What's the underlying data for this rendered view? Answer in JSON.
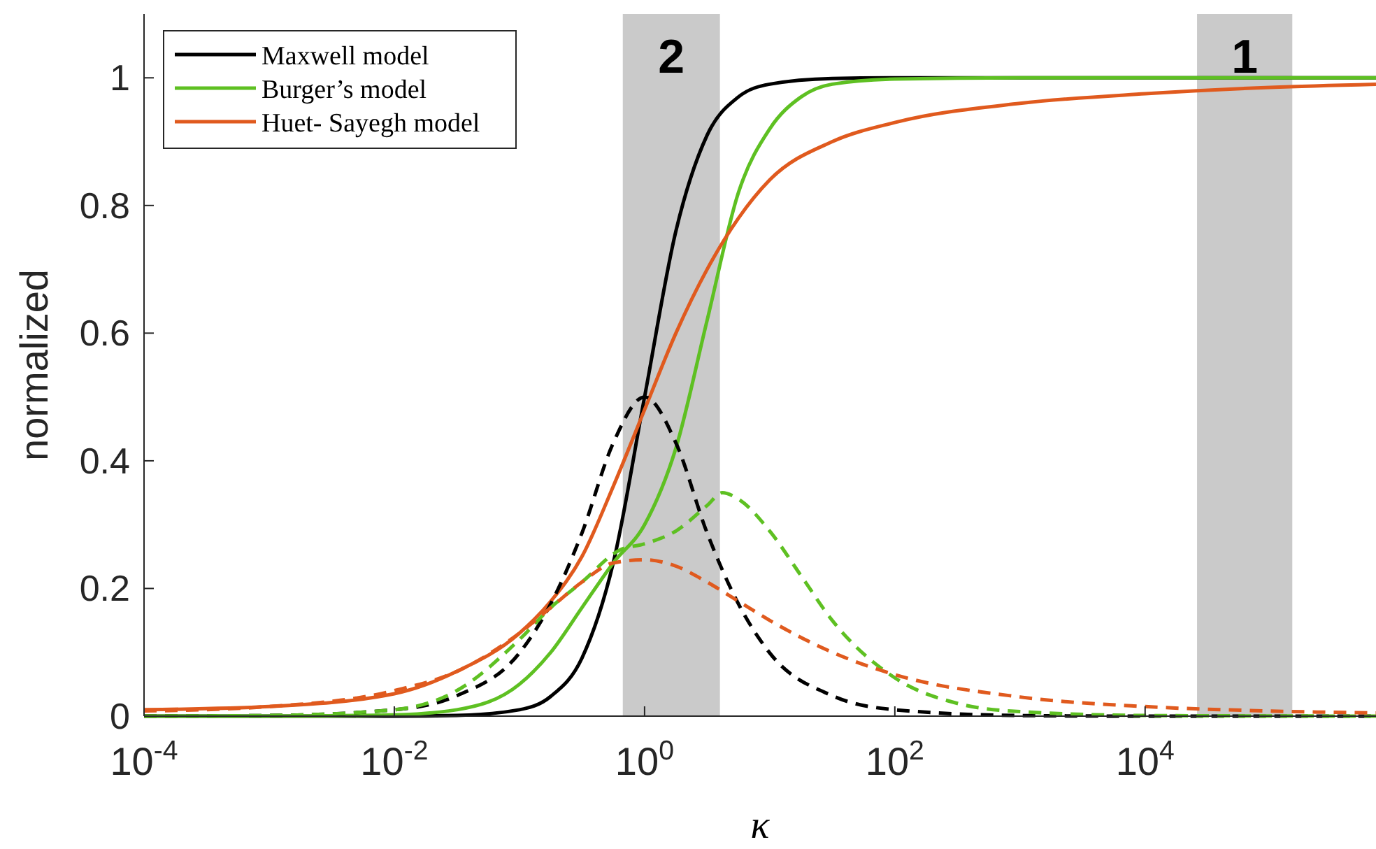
{
  "chart_data": {
    "type": "line",
    "xlabel": "κ",
    "ylabel": "normalized",
    "log": "x",
    "xlim": [
      0.0001,
      700000
    ],
    "ylim": [
      0,
      1.1
    ],
    "xticks": [
      {
        "value": 0.0001,
        "label": "10$^{-4}$"
      },
      {
        "value": 0.01,
        "label": "10$^{-2}$"
      },
      {
        "value": 1,
        "label": "10$^{0}$"
      },
      {
        "value": 100,
        "label": "10$^{2}$"
      },
      {
        "value": 10000,
        "label": "10$^{4}$"
      }
    ],
    "yticks": [
      0,
      0.2,
      0.4,
      0.6,
      0.8,
      1
    ],
    "grid": false,
    "legend": "top left",
    "series": [
      {
        "name": "Maxwell model",
        "color": "#000000",
        "line_style": "solid",
        "x": [
          0.0001,
          0.001,
          0.01,
          0.0316,
          0.1,
          0.178,
          0.316,
          0.562,
          1,
          1.78,
          3.16,
          5.62,
          10,
          31.6,
          100,
          1000,
          10000,
          100000,
          700000
        ],
        "values": [
          0,
          0,
          0,
          0.001,
          0.01,
          0.031,
          0.091,
          0.24,
          0.5,
          0.76,
          0.91,
          0.97,
          0.99,
          0.999,
          1,
          1,
          1,
          1,
          1
        ]
      },
      {
        "name": "Burger’s model",
        "color": "#5ec022",
        "line_style": "solid",
        "x": [
          0.0001,
          0.001,
          0.01,
          0.0316,
          0.1,
          0.178,
          0.316,
          0.562,
          1,
          1.78,
          3.16,
          5.62,
          10,
          17.8,
          31.6,
          100,
          1000,
          10000,
          100000,
          700000
        ],
        "values": [
          0,
          0,
          0.002,
          0.01,
          0.05,
          0.1,
          0.17,
          0.24,
          0.3,
          0.42,
          0.62,
          0.82,
          0.92,
          0.97,
          0.99,
          0.998,
          1,
          1,
          1,
          1
        ]
      },
      {
        "name": "Huet- Sayegh model",
        "color": "#e05a1e",
        "line_style": "solid",
        "x": [
          0.0001,
          0.001,
          0.01,
          0.0316,
          0.1,
          0.178,
          0.316,
          0.562,
          1,
          1.78,
          3.16,
          5.62,
          10,
          31.6,
          100,
          1000,
          10000,
          100000,
          700000
        ],
        "values": [
          0.01,
          0.015,
          0.035,
          0.07,
          0.13,
          0.18,
          0.25,
          0.36,
          0.48,
          0.6,
          0.7,
          0.78,
          0.84,
          0.9,
          0.93,
          0.96,
          0.975,
          0.985,
          0.99
        ]
      },
      {
        "color": "#000000",
        "line_style": "dashed",
        "x": [
          0.0001,
          0.001,
          0.01,
          0.0316,
          0.1,
          0.178,
          0.316,
          0.562,
          1,
          1.78,
          3.16,
          5.62,
          10,
          31.6,
          100,
          1000,
          10000,
          100000,
          700000
        ],
        "values": [
          0,
          0.001,
          0.01,
          0.032,
          0.099,
          0.176,
          0.287,
          0.428,
          0.5,
          0.428,
          0.287,
          0.176,
          0.099,
          0.032,
          0.01,
          0.001,
          0,
          0,
          0
        ]
      },
      {
        "color": "#5ec022",
        "line_style": "dashed",
        "x": [
          0.0001,
          0.001,
          0.01,
          0.0316,
          0.1,
          0.178,
          0.316,
          0.631,
          1,
          1.78,
          3.16,
          4.17,
          5.62,
          10,
          17.8,
          31.6,
          100,
          316,
          1000,
          10000,
          700000
        ],
        "values": [
          0,
          0.001,
          0.01,
          0.04,
          0.12,
          0.17,
          0.21,
          0.26,
          0.27,
          0.29,
          0.33,
          0.35,
          0.34,
          0.29,
          0.22,
          0.15,
          0.06,
          0.02,
          0.007,
          0.001,
          0
        ]
      },
      {
        "color": "#e05a1e",
        "line_style": "dashed",
        "x": [
          0.0001,
          0.001,
          0.01,
          0.0316,
          0.1,
          0.178,
          0.316,
          0.562,
          1,
          1.78,
          3.16,
          5.62,
          10,
          31.6,
          100,
          1000,
          10000,
          100000,
          700000
        ],
        "values": [
          0.008,
          0.015,
          0.04,
          0.07,
          0.13,
          0.17,
          0.21,
          0.24,
          0.245,
          0.235,
          0.21,
          0.18,
          0.15,
          0.1,
          0.065,
          0.03,
          0.015,
          0.008,
          0.005
        ]
      }
    ],
    "bands": [
      {
        "axis": "x",
        "from": 0.67,
        "to": 4,
        "label": "2",
        "color": "#b4b4b4"
      },
      {
        "axis": "x",
        "from": 26000,
        "to": 150000,
        "label": "1",
        "color": "#b4b4b4"
      }
    ]
  }
}
